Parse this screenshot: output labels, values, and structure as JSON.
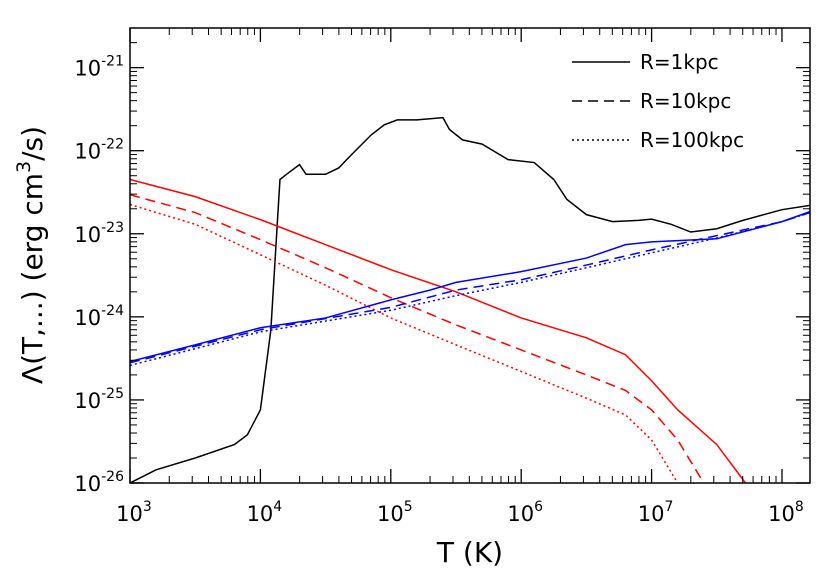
{
  "chart_data": {
    "type": "line",
    "xlabel": "T (K)",
    "ylabel": [
      "Λ(T,...) (erg cm",
      "3",
      "/s)"
    ],
    "xscale": "log",
    "yscale": "log",
    "xlim": [
      1000,
      164000000.0
    ],
    "ylim": [
      1e-26,
      3e-21
    ],
    "xticks": [
      {
        "value": 1000,
        "label": "10",
        "exponent": "3"
      },
      {
        "value": 10000,
        "label": "10",
        "exponent": "4"
      },
      {
        "value": 100000,
        "label": "10",
        "exponent": "5"
      },
      {
        "value": 1000000,
        "label": "10",
        "exponent": "6"
      },
      {
        "value": 10000000,
        "label": "10",
        "exponent": "7"
      },
      {
        "value": 100000000,
        "label": "10",
        "exponent": "8"
      }
    ],
    "yticks": [
      {
        "value": 1e-26,
        "label": "10",
        "exponent": "-26"
      },
      {
        "value": 1e-25,
        "label": "10",
        "exponent": "-25"
      },
      {
        "value": 1e-24,
        "label": "10",
        "exponent": "-24"
      },
      {
        "value": 1e-23,
        "label": "10",
        "exponent": "-23"
      },
      {
        "value": 1e-22,
        "label": "10",
        "exponent": "-22"
      },
      {
        "value": 1e-21,
        "label": "10",
        "exponent": "-21"
      }
    ],
    "legend": {
      "position": "upper right",
      "entries": [
        {
          "name": "R=1kpc",
          "dash": "solid"
        },
        {
          "name": "R=10kpc",
          "dash": "dashed"
        },
        {
          "name": "R=100kpc",
          "dash": "dotted"
        }
      ]
    },
    "series": [
      {
        "color": "#000000",
        "dash": "solid",
        "x": [
          1000,
          1585,
          3162,
          6310,
          7943,
          10000,
          12023,
          14125,
          15849,
          19953,
          22387,
          31623,
          39811,
          50119,
          70795,
          89125,
          112202,
          158489,
          251189,
          281838,
          354813,
          501187,
          794328,
          1258925,
          1778279,
          2238721,
          3162278,
          5011872,
          7943282,
          10000000,
          14125375,
          19952623,
          31622777,
          50118723,
          100000000,
          164000000
        ],
        "values": [
          1e-26,
          1.44e-26,
          2e-26,
          2.9e-26,
          3.8e-26,
          7.6e-26,
          6.9e-25,
          4.5e-23,
          5.2e-23,
          6.8e-23,
          5.2e-23,
          5.2e-23,
          6.2e-23,
          9e-23,
          1.55e-22,
          2.05e-22,
          2.35e-22,
          2.35e-22,
          2.5e-22,
          1.8e-22,
          1.35e-22,
          1.2e-22,
          7.8e-23,
          7.2e-23,
          4.5e-23,
          2.6e-23,
          1.7e-23,
          1.4e-23,
          1.45e-23,
          1.5e-23,
          1.3e-23,
          1.05e-23,
          1.15e-23,
          1.45e-23,
          1.95e-23,
          2.2e-23
        ]
      },
      {
        "color": "#ff0000",
        "dash": "solid",
        "x": [
          1000,
          3162,
          10000,
          31623,
          100000,
          316228,
          1000000,
          3162278,
          6309573,
          10000000,
          15848932,
          31622777,
          52480746
        ],
        "values": [
          4.5e-23,
          2.8e-23,
          1.48e-23,
          7.4e-24,
          3.7e-24,
          2e-24,
          9.7e-25,
          5.6e-25,
          3.5e-25,
          1.7e-25,
          7.6e-26,
          2.9e-26,
          1e-26
        ]
      },
      {
        "color": "#ff0000",
        "dash": "dashed",
        "x": [
          1000,
          3162,
          10000,
          31623,
          100000,
          316228,
          1000000,
          3162278,
          6309573,
          10000000,
          15848932,
          25118864
        ],
        "values": [
          2.95e-23,
          1.8e-23,
          8.5e-24,
          3.9e-24,
          1.7e-24,
          8e-25,
          4e-25,
          2e-25,
          1.3e-25,
          7.6e-26,
          3.3e-26,
          1e-26
        ]
      },
      {
        "color": "#ff0000",
        "dash": "dotted",
        "x": [
          1000,
          3162,
          10000,
          31623,
          100000,
          316228,
          1000000,
          3162278,
          6309573,
          10000000,
          15848932
        ],
        "values": [
          2.25e-23,
          1.3e-23,
          5.6e-24,
          2.4e-24,
          9.7e-25,
          4.6e-25,
          2.2e-25,
          1.05e-25,
          6.6e-26,
          3.3e-26,
          1e-26
        ]
      },
      {
        "color": "#0000ff",
        "dash": "solid",
        "x": [
          1000,
          3162,
          10000,
          31623,
          100000,
          199526,
          316228,
          1000000,
          3162278,
          6309573,
          10000000,
          31622777,
          100000000,
          164000000
        ],
        "values": [
          2.9e-25,
          4.6e-25,
          7.4e-25,
          9.7e-25,
          1.6e-24,
          2.1e-24,
          2.6e-24,
          3.5e-24,
          5.1e-24,
          7.4e-24,
          8e-24,
          8.7e-24,
          1.4e-23,
          1.85e-23
        ]
      },
      {
        "color": "#0000ff",
        "dash": "dashed",
        "x": [
          1000,
          10000,
          100000,
          316228,
          1000000,
          3162278,
          10000000,
          31622777,
          100000000,
          164000000
        ],
        "values": [
          2.8e-25,
          7e-25,
          1.3e-24,
          2.1e-24,
          2.8e-24,
          4.2e-24,
          6.4e-24,
          9.5e-24,
          1.4e-23,
          1.8e-23
        ]
      },
      {
        "color": "#0000ff",
        "dash": "dotted",
        "x": [
          1000,
          10000,
          100000,
          316228,
          1000000,
          3162278,
          10000000,
          31622777,
          100000000,
          164000000
        ],
        "values": [
          2.6e-25,
          6.6e-25,
          1.2e-24,
          1.8e-24,
          2.6e-24,
          3.9e-24,
          5.9e-24,
          8.9e-24,
          1.4e-23,
          1.8e-23
        ]
      }
    ]
  }
}
